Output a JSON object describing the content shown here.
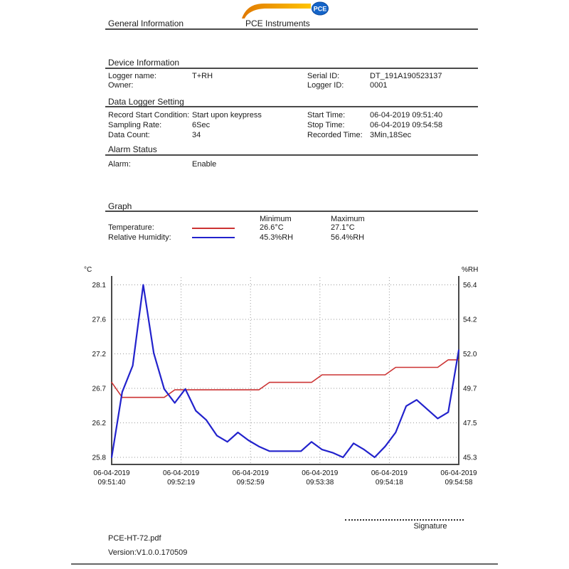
{
  "header": {
    "title": "General Information",
    "brand": "PCE Instruments",
    "logo_text": "PCE",
    "logo_colors": {
      "swoosh_start": "#e07800",
      "swoosh_end": "#ffc400",
      "badge": "#1464c8"
    }
  },
  "device_information": {
    "title": "Device Information",
    "rows": [
      {
        "l1": "Logger name:",
        "v1": "T+RH",
        "l2": "Serial ID:",
        "v2": "DT_191A190523137"
      },
      {
        "l1": "Owner:",
        "v1": "",
        "l2": "Logger ID:",
        "v2": "0001"
      }
    ]
  },
  "data_logger_setting": {
    "title": "Data Logger Setting",
    "rows": [
      {
        "l1": "Record Start Condition:",
        "v1": "Start upon keypress",
        "l2": "Start Time:",
        "v2": "06-04-2019 09:51:40"
      },
      {
        "l1": "Sampling Rate:",
        "v1": "6Sec",
        "l2": "Stop Time:",
        "v2": "06-04-2019 09:54:58"
      },
      {
        "l1": "Data Count:",
        "v1": "34",
        "l2": "Recorded Time:",
        "v2": "3Min,18Sec"
      }
    ]
  },
  "alarm_status": {
    "title": "Alarm Status",
    "rows": [
      {
        "l1": "Alarm:",
        "v1": "Enable"
      }
    ]
  },
  "graph": {
    "title": "Graph",
    "legend": {
      "min_header": "Minimum",
      "max_header": "Maximum",
      "rows": [
        {
          "label": "Temperature:",
          "color": "#cc3333",
          "min": "26.6°C",
          "max": "27.1°C"
        },
        {
          "label": "Relative Humidity:",
          "color": "#2222cc",
          "min": "45.3%RH",
          "max": "56.4%RH"
        }
      ]
    }
  },
  "chart_data": {
    "type": "line",
    "grid": "dotted",
    "x_ticks": [
      {
        "date": "06-04-2019",
        "time": "09:51:40"
      },
      {
        "date": "06-04-2019",
        "time": "09:52:19"
      },
      {
        "date": "06-04-2019",
        "time": "09:52:59"
      },
      {
        "date": "06-04-2019",
        "time": "09:53:38"
      },
      {
        "date": "06-04-2019",
        "time": "09:54:18"
      },
      {
        "date": "06-04-2019",
        "time": "09:54:58"
      }
    ],
    "left_axis": {
      "label": "°C",
      "min": 25.8,
      "max": 28.1,
      "tick_labels": [
        "28.1",
        "27.6",
        "27.2",
        "26.7",
        "26.2",
        "25.8"
      ]
    },
    "right_axis": {
      "label": "%RH",
      "min": 45.3,
      "max": 56.4,
      "tick_labels": [
        "56.4",
        "54.2",
        "52.0",
        "49.7",
        "47.5",
        "45.3"
      ]
    },
    "series": [
      {
        "name": "Temperature",
        "unit": "°C",
        "axis": "left",
        "color": "#cc3333",
        "values": [
          26.8,
          26.6,
          26.6,
          26.6,
          26.6,
          26.6,
          26.7,
          26.7,
          26.7,
          26.7,
          26.7,
          26.7,
          26.7,
          26.7,
          26.7,
          26.8,
          26.8,
          26.8,
          26.8,
          26.8,
          26.9,
          26.9,
          26.9,
          26.9,
          26.9,
          26.9,
          26.9,
          27.0,
          27.0,
          27.0,
          27.0,
          27.0,
          27.1,
          27.1
        ]
      },
      {
        "name": "Relative Humidity",
        "unit": "%RH",
        "axis": "right",
        "color": "#2222cc",
        "values": [
          45.3,
          49.5,
          51.2,
          56.4,
          52.0,
          49.7,
          48.8,
          49.7,
          48.3,
          47.7,
          46.7,
          46.3,
          46.9,
          46.4,
          46.0,
          45.7,
          45.7,
          45.7,
          45.7,
          46.3,
          45.8,
          45.6,
          45.3,
          46.2,
          45.8,
          45.3,
          46.0,
          46.9,
          48.6,
          49.0,
          48.4,
          47.8,
          48.2,
          52.2
        ]
      }
    ]
  },
  "signature": {
    "label": "Signature"
  },
  "footer": {
    "file": "PCE-HT-72.pdf",
    "version": "Version:V1.0.0.170509"
  }
}
